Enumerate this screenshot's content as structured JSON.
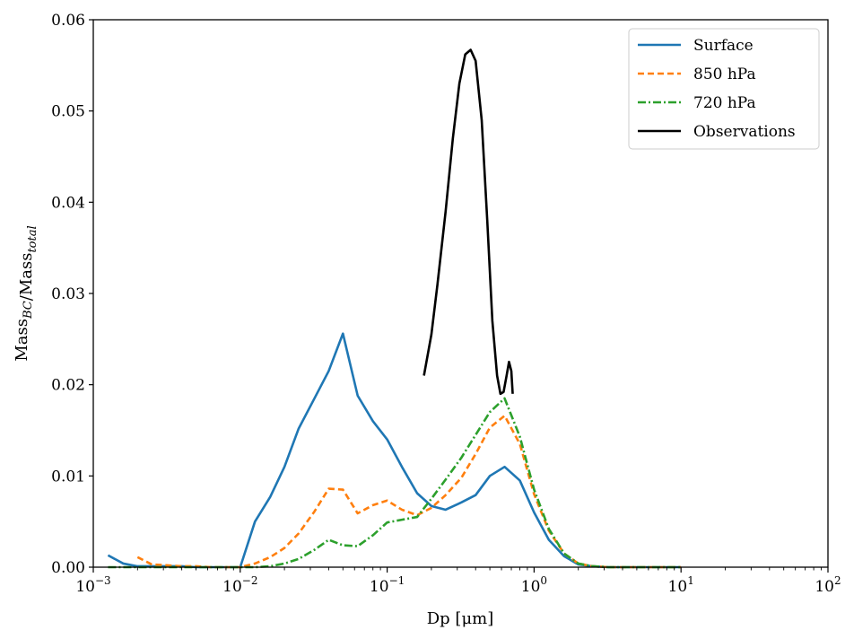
{
  "chart_data": {
    "type": "line",
    "xscale": "log",
    "xlim": [
      0.001,
      100
    ],
    "ylim": [
      0,
      0.06
    ],
    "xlabel": "Dp [μm]",
    "ylabel": "Mass_BC/Mass_total",
    "xticks": [
      {
        "value": 0.001,
        "base": "10",
        "exp": "−3"
      },
      {
        "value": 0.01,
        "base": "10",
        "exp": "−2"
      },
      {
        "value": 0.1,
        "base": "10",
        "exp": "−1"
      },
      {
        "value": 1,
        "base": "10",
        "exp": "0"
      },
      {
        "value": 10,
        "base": "10",
        "exp": "1"
      },
      {
        "value": 100,
        "base": "10",
        "exp": "2"
      }
    ],
    "yticks": [
      {
        "value": 0,
        "label": "0.00"
      },
      {
        "value": 0.01,
        "label": "0.01"
      },
      {
        "value": 0.02,
        "label": "0.02"
      },
      {
        "value": 0.03,
        "label": "0.03"
      },
      {
        "value": 0.04,
        "label": "0.04"
      },
      {
        "value": 0.05,
        "label": "0.05"
      },
      {
        "value": 0.06,
        "label": "0.06"
      }
    ],
    "legend_position": "top-right",
    "grid": false,
    "series": [
      {
        "name": "Surface",
        "color": "#1f77b4",
        "dash": "solid",
        "x": [
          0.00126,
          0.0016,
          0.002,
          0.0025,
          0.0032,
          0.004,
          0.005,
          0.0063,
          0.008,
          0.01,
          0.0126,
          0.016,
          0.02,
          0.025,
          0.032,
          0.04,
          0.05,
          0.063,
          0.08,
          0.1,
          0.126,
          0.16,
          0.2,
          0.25,
          0.32,
          0.4,
          0.5,
          0.63,
          0.8,
          1.0,
          1.26,
          1.6,
          2.0,
          2.5,
          3.2,
          4.0,
          5.0,
          6.3,
          8.0,
          10.0
        ],
        "y": [
          0.0013,
          0.0004,
          0.0001,
          0.0001,
          0.0001,
          0.0001,
          0.0,
          0.0,
          0.0,
          0.0,
          0.005,
          0.0077,
          0.011,
          0.0152,
          0.0185,
          0.0215,
          0.0256,
          0.0188,
          0.016,
          0.014,
          0.011,
          0.0081,
          0.0067,
          0.0063,
          0.0071,
          0.0079,
          0.01,
          0.011,
          0.0095,
          0.006,
          0.003,
          0.0012,
          0.0003,
          0.0001,
          0.0,
          0.0,
          0.0,
          0.0,
          0.0,
          0.0
        ]
      },
      {
        "name": "850 hPa",
        "color": "#ff7f0e",
        "dash": "dashed",
        "x": [
          0.002,
          0.0025,
          0.0032,
          0.004,
          0.005,
          0.0063,
          0.008,
          0.01,
          0.0126,
          0.016,
          0.02,
          0.025,
          0.032,
          0.04,
          0.05,
          0.063,
          0.08,
          0.1,
          0.126,
          0.16,
          0.2,
          0.25,
          0.32,
          0.4,
          0.5,
          0.63,
          0.8,
          1.0,
          1.26,
          1.6,
          2.0,
          2.5,
          3.2,
          4.0,
          5.0,
          6.3,
          8.0,
          10.0
        ],
        "y": [
          0.0011,
          0.0003,
          0.0002,
          0.0001,
          0.0001,
          0.0,
          0.0,
          0.0,
          0.0004,
          0.0011,
          0.0021,
          0.0037,
          0.0061,
          0.0086,
          0.0085,
          0.0059,
          0.0068,
          0.0073,
          0.0063,
          0.0057,
          0.0065,
          0.0079,
          0.0098,
          0.0124,
          0.0153,
          0.0166,
          0.0135,
          0.008,
          0.004,
          0.0015,
          0.0004,
          0.0001,
          0.0,
          0.0,
          0.0,
          0.0,
          0.0,
          0.0
        ]
      },
      {
        "name": "720 hPa",
        "color": "#2ca02c",
        "dash": "dashdot",
        "x": [
          0.00126,
          0.0016,
          0.002,
          0.0025,
          0.0032,
          0.004,
          0.005,
          0.0063,
          0.008,
          0.01,
          0.0126,
          0.016,
          0.02,
          0.025,
          0.032,
          0.04,
          0.05,
          0.063,
          0.08,
          0.1,
          0.126,
          0.16,
          0.2,
          0.25,
          0.32,
          0.4,
          0.5,
          0.63,
          0.8,
          1.0,
          1.26,
          1.6,
          2.0,
          2.5,
          3.2,
          4.0,
          5.0,
          6.3,
          8.0,
          10.0
        ],
        "y": [
          0.0,
          0.0,
          0.0,
          0.0,
          0.0,
          0.0,
          0.0,
          0.0,
          0.0,
          0.0,
          0.0,
          0.0001,
          0.0004,
          0.0009,
          0.0019,
          0.003,
          0.0024,
          0.0023,
          0.0035,
          0.0049,
          0.0052,
          0.0055,
          0.0075,
          0.0096,
          0.012,
          0.0145,
          0.017,
          0.0185,
          0.0143,
          0.0085,
          0.0042,
          0.0015,
          0.0004,
          0.0001,
          0.0,
          0.0,
          0.0,
          0.0,
          0.0,
          0.0
        ]
      },
      {
        "name": "Observations",
        "color": "#000000",
        "dash": "solid",
        "x": [
          0.178,
          0.2,
          0.22,
          0.25,
          0.28,
          0.31,
          0.34,
          0.37,
          0.4,
          0.44,
          0.48,
          0.52,
          0.56,
          0.59,
          0.62,
          0.65,
          0.675,
          0.7,
          0.715
        ],
        "y": [
          0.021,
          0.0255,
          0.031,
          0.039,
          0.047,
          0.053,
          0.0562,
          0.0567,
          0.0555,
          0.049,
          0.038,
          0.027,
          0.021,
          0.019,
          0.0192,
          0.021,
          0.0225,
          0.0215,
          0.019
        ]
      }
    ]
  }
}
